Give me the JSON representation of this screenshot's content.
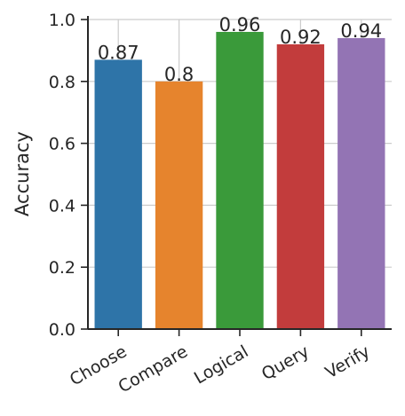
{
  "chart_data": {
    "type": "bar",
    "categories": [
      "Choose",
      "Compare",
      "Logical",
      "Query",
      "Verify"
    ],
    "values": [
      0.87,
      0.8,
      0.96,
      0.92,
      0.94
    ],
    "value_labels": [
      "0.87",
      "0.8",
      "0.96",
      "0.92",
      "0.94"
    ],
    "colors": [
      "#2e74a8",
      "#e6842d",
      "#3a9a3a",
      "#c23c3c",
      "#9374b4"
    ],
    "ylabel": "Accuracy",
    "xlabel": "",
    "ylim": [
      0,
      1.0
    ],
    "yticks": [
      0.0,
      0.2,
      0.4,
      0.6,
      0.8,
      1.0
    ],
    "ytick_labels": [
      "0.0",
      "0.2",
      "0.4",
      "0.6",
      "0.8",
      "1.0"
    ],
    "grid": true,
    "xtick_rotation_deg": -30
  }
}
